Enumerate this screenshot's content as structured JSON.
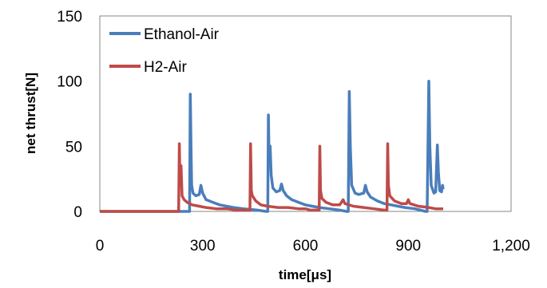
{
  "chart_data": {
    "type": "line",
    "title": "",
    "xlabel": "time[μs]",
    "ylabel": "net thrust[N]",
    "xlim": [
      0,
      1200
    ],
    "ylim": [
      0,
      150
    ],
    "x_tick_labels": [
      "0",
      "300",
      "600",
      "900",
      "1,200"
    ],
    "y_tick_labels": [
      "0",
      "50",
      "100",
      "150"
    ],
    "legend_position": "top-left",
    "grid": false,
    "series": [
      {
        "name": "Ethanol-Air",
        "color": "#4a7ebb",
        "points": [
          [
            0,
            0
          ],
          [
            255,
            0
          ],
          [
            262,
            0
          ],
          [
            264,
            90
          ],
          [
            266,
            50
          ],
          [
            268,
            20
          ],
          [
            272,
            14
          ],
          [
            280,
            12
          ],
          [
            290,
            13
          ],
          [
            295,
            20
          ],
          [
            300,
            14
          ],
          [
            310,
            9
          ],
          [
            330,
            7
          ],
          [
            350,
            5
          ],
          [
            370,
            4
          ],
          [
            390,
            3
          ],
          [
            420,
            2
          ],
          [
            460,
            1
          ],
          [
            485,
            0
          ],
          [
            490,
            0
          ],
          [
            492,
            74
          ],
          [
            494,
            40
          ],
          [
            497,
            50
          ],
          [
            500,
            28
          ],
          [
            505,
            18
          ],
          [
            515,
            15
          ],
          [
            525,
            16
          ],
          [
            530,
            21
          ],
          [
            535,
            16
          ],
          [
            545,
            12
          ],
          [
            560,
            9
          ],
          [
            580,
            7
          ],
          [
            600,
            5
          ],
          [
            620,
            4
          ],
          [
            640,
            3
          ],
          [
            670,
            2
          ],
          [
            700,
            1
          ],
          [
            720,
            0
          ],
          [
            725,
            0
          ],
          [
            728,
            92
          ],
          [
            731,
            50
          ],
          [
            735,
            20
          ],
          [
            745,
            14
          ],
          [
            755,
            13
          ],
          [
            770,
            14
          ],
          [
            775,
            20
          ],
          [
            780,
            15
          ],
          [
            790,
            11
          ],
          [
            810,
            8
          ],
          [
            830,
            6
          ],
          [
            850,
            5
          ],
          [
            870,
            4
          ],
          [
            890,
            3
          ],
          [
            920,
            2
          ],
          [
            950,
            0
          ],
          [
            955,
            0
          ],
          [
            960,
            100
          ],
          [
            963,
            50
          ],
          [
            967,
            20
          ],
          [
            975,
            14
          ],
          [
            980,
            15
          ],
          [
            985,
            51
          ],
          [
            988,
            30
          ],
          [
            992,
            16
          ],
          [
            997,
            15
          ],
          [
            1000,
            20
          ],
          [
            1002,
            17
          ]
        ]
      },
      {
        "name": "H2-Air",
        "color": "#be4b48",
        "points": [
          [
            0,
            0
          ],
          [
            230,
            0
          ],
          [
            232,
            52
          ],
          [
            234,
            20
          ],
          [
            237,
            35
          ],
          [
            240,
            12
          ],
          [
            246,
            9
          ],
          [
            255,
            7
          ],
          [
            262,
            6
          ],
          [
            270,
            5
          ],
          [
            290,
            4
          ],
          [
            310,
            3
          ],
          [
            340,
            2
          ],
          [
            370,
            2
          ],
          [
            400,
            1
          ],
          [
            420,
            1
          ],
          [
            438,
            1
          ],
          [
            440,
            52
          ],
          [
            442,
            16
          ],
          [
            445,
            12
          ],
          [
            455,
            8
          ],
          [
            470,
            5
          ],
          [
            490,
            4
          ],
          [
            520,
            3
          ],
          [
            550,
            3
          ],
          [
            580,
            2
          ],
          [
            600,
            2
          ],
          [
            615,
            1
          ],
          [
            630,
            1
          ],
          [
            640,
            1
          ],
          [
            642,
            50
          ],
          [
            644,
            16
          ],
          [
            648,
            10
          ],
          [
            660,
            7
          ],
          [
            680,
            5
          ],
          [
            700,
            5
          ],
          [
            710,
            9
          ],
          [
            715,
            6
          ],
          [
            740,
            4
          ],
          [
            770,
            3
          ],
          [
            800,
            2
          ],
          [
            830,
            1
          ],
          [
            838,
            1
          ],
          [
            840,
            52
          ],
          [
            842,
            20
          ],
          [
            846,
            12
          ],
          [
            860,
            8
          ],
          [
            880,
            6
          ],
          [
            895,
            6
          ],
          [
            900,
            9
          ],
          [
            905,
            6
          ],
          [
            930,
            4
          ],
          [
            960,
            3
          ],
          [
            980,
            2
          ],
          [
            1000,
            2
          ],
          [
            1002,
            2
          ]
        ]
      }
    ]
  }
}
